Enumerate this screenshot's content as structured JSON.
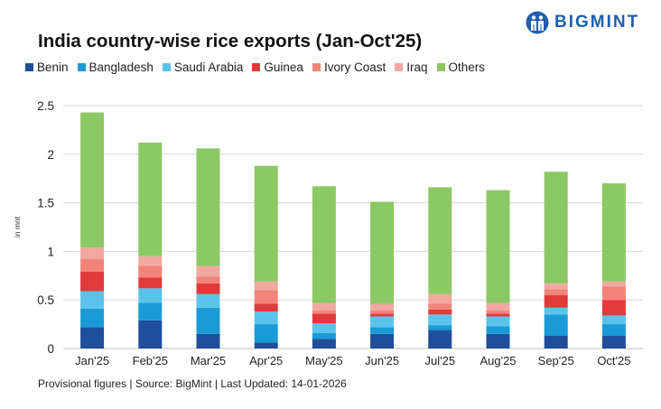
{
  "chart_data": {
    "type": "bar",
    "stacked": true,
    "title": "India country-wise rice exports (Jan-Oct'25)",
    "xlabel": "",
    "ylabel": "in mnt",
    "ylim": [
      0,
      2.5
    ],
    "yticks": [
      "0",
      "0.5",
      "1",
      "1.5",
      "2",
      "2.5"
    ],
    "ytick_values": [
      0,
      0.5,
      1,
      1.5,
      2,
      2.5
    ],
    "grid": true,
    "legend_position": "top",
    "categories": [
      "Jan'25",
      "Feb'25",
      "Mar'25",
      "Apr'25",
      "May'25",
      "Jun'25",
      "Jul'25",
      "Aug'25",
      "Sep'25",
      "Oct'25"
    ],
    "series": [
      {
        "name": "Benin",
        "color": "#1f4e9c",
        "values": [
          0.22,
          0.29,
          0.15,
          0.06,
          0.1,
          0.15,
          0.19,
          0.15,
          0.13,
          0.13
        ]
      },
      {
        "name": "Bangladesh",
        "color": "#1a9ad6",
        "values": [
          0.19,
          0.18,
          0.27,
          0.19,
          0.06,
          0.07,
          0.05,
          0.08,
          0.22,
          0.12
        ]
      },
      {
        "name": "Saudi Arabia",
        "color": "#5bc3ea",
        "values": [
          0.18,
          0.15,
          0.14,
          0.13,
          0.1,
          0.11,
          0.11,
          0.1,
          0.07,
          0.09
        ]
      },
      {
        "name": "Guinea",
        "color": "#e23a3a",
        "values": [
          0.2,
          0.11,
          0.11,
          0.08,
          0.1,
          0.03,
          0.05,
          0.03,
          0.13,
          0.16
        ]
      },
      {
        "name": "Ivory Coast",
        "color": "#f2837a",
        "values": [
          0.13,
          0.12,
          0.07,
          0.14,
          0.03,
          0.03,
          0.06,
          0.03,
          0.06,
          0.14
        ]
      },
      {
        "name": "Iraq",
        "color": "#f0a8a0",
        "values": [
          0.12,
          0.1,
          0.11,
          0.09,
          0.08,
          0.07,
          0.1,
          0.08,
          0.06,
          0.05
        ]
      },
      {
        "name": "Others",
        "color": "#8cc863",
        "values": [
          1.39,
          1.17,
          1.21,
          1.19,
          1.2,
          1.05,
          1.1,
          1.16,
          1.15,
          1.01
        ]
      }
    ]
  },
  "logo": {
    "text": "BIGMINT"
  },
  "footer": {
    "text": "Provisional figures | Source: BigMint | Last Updated: 14-01-2026"
  }
}
